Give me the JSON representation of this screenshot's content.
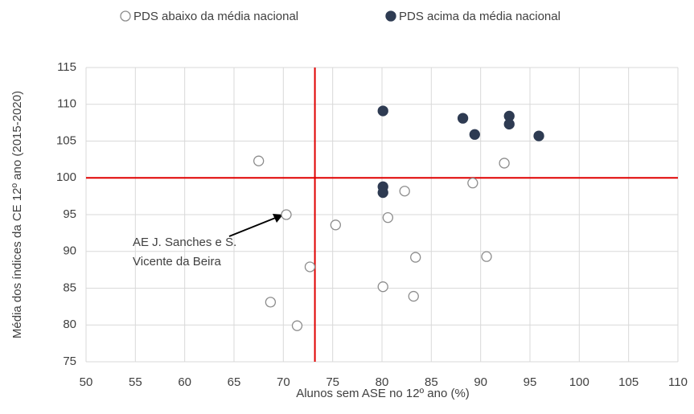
{
  "chart_data": {
    "type": "scatter",
    "x_label": "Alunos sem ASE no 12º ano (%)",
    "y_label": "Média dos índices da CE 12º ano (2015-2020)",
    "xlim": [
      50,
      110
    ],
    "xticks": [
      50,
      55,
      60,
      65,
      70,
      75,
      80,
      85,
      90,
      95,
      100,
      105,
      110
    ],
    "ylim": [
      75,
      115
    ],
    "yticks": [
      75,
      80,
      85,
      90,
      95,
      100,
      105,
      110,
      115
    ],
    "grid": true,
    "legend_position": "top",
    "reference_lines": {
      "x": 73.2,
      "y": 100,
      "color": "#e00000"
    },
    "annotation": {
      "lines": [
        "AE J. Sanches e S.",
        "Vicente da Beira"
      ]
    },
    "series": [
      {
        "name": "PDS abaixo da média nacional",
        "color": "#8c8c8c",
        "filled": false,
        "x": [
          67.5,
          70.3,
          75.3,
          72.7,
          68.7,
          71.4,
          80.6,
          82.3,
          89.2,
          92.4,
          83.4,
          90.6,
          80.1,
          83.2
        ],
        "values": [
          102.3,
          95.0,
          93.6,
          87.9,
          83.1,
          79.9,
          94.6,
          98.2,
          99.3,
          102.0,
          89.2,
          89.3,
          85.2,
          83.9
        ]
      },
      {
        "name": "PDS acima da média nacional",
        "color": "#2e3b52",
        "filled": true,
        "x": [
          80.1,
          88.2,
          92.9,
          92.9,
          89.4,
          95.9,
          80.1,
          80.1
        ],
        "values": [
          109.1,
          108.1,
          108.4,
          107.3,
          105.9,
          105.7,
          98.8,
          98.0
        ]
      }
    ]
  }
}
